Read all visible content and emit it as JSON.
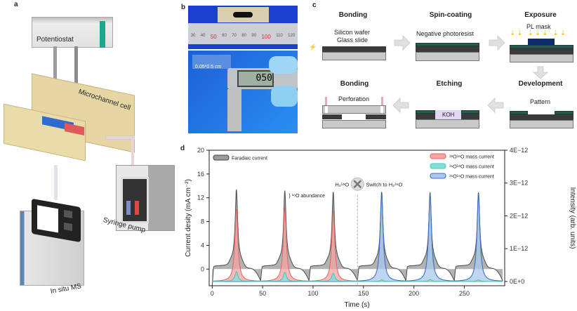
{
  "panels": {
    "a": {
      "label": "a",
      "potentiostat": "Potentiostat",
      "cell": "Microchannel cell",
      "pump": "Syringe pump",
      "ms": "In situ MS"
    },
    "b": {
      "label": "b",
      "size_label": "0.05*0.5 cm",
      "caliper_reading": "050",
      "ruler_ticks": [
        "30",
        "40",
        "50",
        "60",
        "70",
        "80",
        "90",
        "100",
        "110",
        "120"
      ]
    },
    "c": {
      "label": "c",
      "steps": [
        {
          "title": "Bonding",
          "labels": [
            "Silicon wafer",
            "Glass slide"
          ]
        },
        {
          "title": "Spin-coating",
          "labels": [
            "Negative photoresist"
          ]
        },
        {
          "title": "Exposure",
          "labels": [
            "PL mask"
          ]
        },
        {
          "title": "Development",
          "labels": [
            "Pattern"
          ]
        },
        {
          "title": "Etching",
          "labels": [
            "KOH"
          ]
        },
        {
          "title": "Bonding",
          "labels": [
            "Perforation"
          ]
        }
      ]
    },
    "d": {
      "label": "d"
    }
  },
  "colors": {
    "faradaic": "#555555",
    "o18o18": "#f4a3a3",
    "o16o18": "#7fe0d6",
    "o16o16": "#a9c8ec",
    "o16o16_line": "#3b6fc4",
    "o18o18_line": "#e06a6a",
    "o16o18_line": "#4cc6ba",
    "accent_teal": "#1aa88f"
  },
  "chart_data": {
    "type": "line",
    "xlabel": "Time (s)",
    "ylabel": "Current desity (mA cm⁻²)",
    "y2label": "Intensity (arb. units)",
    "xlim": [
      -3,
      290
    ],
    "ylim": [
      -2.8,
      20
    ],
    "y2lim": [
      -1.3e-13,
      4e-12
    ],
    "xticks": [
      "0",
      "50",
      "100",
      "150",
      "200",
      "250"
    ],
    "xtick_values": [
      0,
      50,
      100,
      150,
      200,
      250
    ],
    "yticks": [
      "0",
      "4",
      "8",
      "12",
      "16",
      "20"
    ],
    "ytick_values": [
      0,
      4,
      8,
      12,
      16,
      20
    ],
    "y2ticks": [
      "0E+0",
      "1E−12",
      "2E−12",
      "3E−12",
      "4E−12"
    ],
    "y2tick_values": [
      0,
      1e-12,
      2e-12,
      3e-12,
      4e-12
    ],
    "cycle_period_s": 48,
    "peak_times": [
      24,
      72,
      120,
      168,
      216,
      264
    ],
    "series": [
      {
        "name": "Faradaic current",
        "axis": "left",
        "peak_values": [
          13.4,
          13.2,
          13.0,
          13.0,
          12.9,
          12.9
        ],
        "baseline": 0.5,
        "dip": -2.0
      },
      {
        "name": "¹⁸O¹⁸O mass current",
        "axis": "right",
        "peak_values": [
          2.2e-12,
          2.25e-12,
          2.15e-12,
          0,
          0,
          0
        ]
      },
      {
        "name": "¹⁶O¹⁸O mass current",
        "axis": "right",
        "peak_values": [
          3e-13,
          2.8e-13,
          2.5e-13,
          5e-14,
          6e-14,
          5e-14
        ]
      },
      {
        "name": "¹⁶O¹⁶O mass current",
        "axis": "right",
        "peak_values": [
          0,
          0,
          0,
          2.65e-12,
          2.65e-12,
          2.65e-12
        ]
      }
    ],
    "annotations": {
      "abundance": "¹⁶O abundance",
      "before": "H₂¹⁸O",
      "switch": "Switch to H₂¹⁶O",
      "switch_time": 144
    },
    "legend": [
      "Faradaic current (top-left)",
      "mass currents (top-right)"
    ],
    "grid": false
  }
}
